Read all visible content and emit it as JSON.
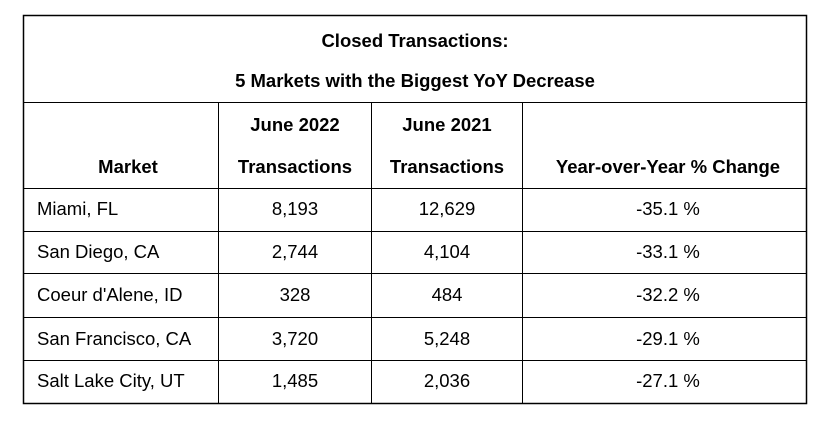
{
  "table": {
    "title": [
      "Closed Transactions:",
      "5 Markets with the Biggest YoY Decrease"
    ],
    "header": [
      [
        "Market"
      ],
      [
        "June 2022",
        "Transactions"
      ],
      [
        "June 2021",
        "Transactions"
      ],
      [
        "Year-over-Year % Change"
      ]
    ],
    "rows": [
      [
        "Miami, FL",
        "8,193",
        "12,629",
        "-35.1 %"
      ],
      [
        "San Diego, CA",
        "2,744",
        "4,104",
        "-33.1 %"
      ],
      [
        "Coeur d'Alene, ID",
        "328",
        "484",
        "-32.2 %"
      ],
      [
        "San Francisco, CA",
        "3,720",
        "5,248",
        "-29.1 %"
      ],
      [
        "Salt Lake City, UT",
        "1,485",
        "2,036",
        "-27.1 %"
      ]
    ]
  }
}
